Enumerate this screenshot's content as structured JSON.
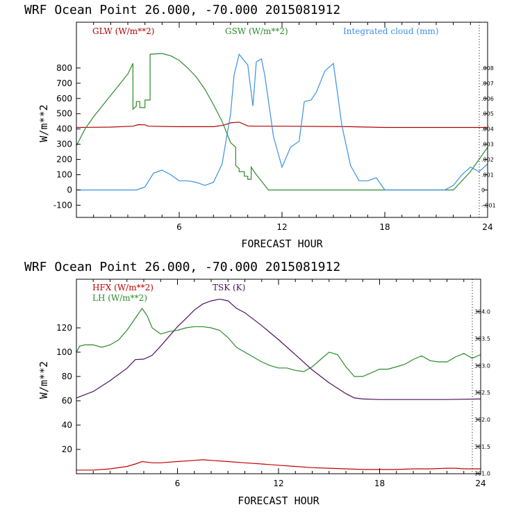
{
  "chart_data": [
    {
      "type": "line",
      "title": "WRF   Ocean Point   26.000, -70.000  2015081912",
      "xlabel": "FORECAST HOUR",
      "ylabel": "W/m**2",
      "xlim": [
        0,
        24
      ],
      "ylim": [
        -180,
        1100
      ],
      "x_ticks": [
        6,
        12,
        18,
        24
      ],
      "y_ticks": [
        -100,
        0,
        100,
        200,
        300,
        400,
        500,
        600,
        700,
        800
      ],
      "right_axis": {
        "lim": [
          -0.0018,
          0.011
        ],
        "ticks": [
          -0.001,
          0,
          0.001,
          0.002,
          0.003,
          0.004,
          0.005,
          0.006,
          0.007,
          0.008
        ],
        "tick_labels": [
          "-.001",
          "0",
          ".001",
          ".002",
          ".003",
          ".004",
          ".005",
          ".006",
          ".007",
          ".008"
        ]
      },
      "series": [
        {
          "name": "GLW (W/m**2)",
          "color": "#b00000",
          "axis": "left",
          "x": [
            0,
            2,
            3.3,
            3.6,
            4,
            4.2,
            6,
            8,
            8.6,
            9,
            9.5,
            10,
            10.5,
            12,
            16,
            18,
            24
          ],
          "y": [
            410,
            412,
            418,
            428,
            427,
            418,
            415,
            415,
            425,
            440,
            445,
            420,
            418,
            418,
            415,
            410,
            410
          ]
        },
        {
          "name": "GSW (W/m**2)",
          "color": "#2a8a2a",
          "axis": "left",
          "x": [
            0,
            0.5,
            1,
            1.5,
            2,
            2.5,
            3,
            3.3,
            3.3,
            3.5,
            3.5,
            3.7,
            3.7,
            4,
            4,
            4.3,
            4.3,
            5,
            5.5,
            6,
            6.5,
            7,
            7.5,
            8,
            8.5,
            9,
            9.3,
            9.3,
            9.5,
            9.5,
            9.8,
            9.8,
            10,
            10,
            10.2,
            10.2,
            10.5,
            11,
            11.2,
            21.5,
            22,
            23,
            24
          ],
          "y": [
            290,
            400,
            480,
            550,
            620,
            690,
            760,
            830,
            530,
            550,
            580,
            580,
            540,
            540,
            590,
            590,
            890,
            895,
            880,
            850,
            800,
            740,
            660,
            560,
            450,
            310,
            280,
            160,
            140,
            120,
            120,
            90,
            90,
            70,
            70,
            150,
            100,
            30,
            0,
            0,
            0,
            120,
            280
          ]
        },
        {
          "name": "Integrated cloud (mm)",
          "color": "#3a8fe0",
          "axis": "right",
          "x": [
            0,
            3.5,
            4,
            4.5,
            5,
            5.5,
            6,
            6.5,
            7,
            7.5,
            8,
            8.5,
            9,
            9.2,
            9.5,
            10,
            10.3,
            10.5,
            10.8,
            11,
            11.5,
            12,
            12.5,
            13,
            13.3,
            13.7,
            14,
            14.5,
            15,
            15.5,
            16,
            16.5,
            17,
            17.5,
            18,
            21.5,
            22,
            22.5,
            23,
            23.5,
            24
          ],
          "y": [
            0,
            0,
            0.0002,
            0.0011,
            0.0013,
            0.001,
            0.0006,
            0.0006,
            0.0005,
            0.0003,
            0.0005,
            0.0017,
            0.005,
            0.0075,
            0.0089,
            0.0082,
            0.0055,
            0.0084,
            0.0086,
            0.0075,
            0.0035,
            0.0015,
            0.0028,
            0.0032,
            0.0058,
            0.0059,
            0.0064,
            0.0078,
            0.0083,
            0.0042,
            0.0016,
            0.0006,
            0.0006,
            0.0008,
            0,
            0,
            0.0003,
            0.001,
            0.0015,
            0.0012,
            0.0017
          ]
        }
      ]
    },
    {
      "type": "line",
      "title": "WRF   Ocean Point   26.000, -70.000  2015081912",
      "xlabel": "FORECAST HOUR",
      "ylabel": "W/m**2",
      "xlim": [
        0,
        24
      ],
      "ylim": [
        0,
        160
      ],
      "x_ticks": [
        6,
        12,
        18,
        24
      ],
      "y_ticks": [
        20,
        40,
        60,
        80,
        100,
        120
      ],
      "right_axis": {
        "lim": [
          300.995,
          304.6
        ],
        "ticks": [
          301.0,
          301.5,
          302.0,
          302.5,
          303.0,
          303.5,
          304.0
        ],
        "tick_labels": [
          "301.0",
          "301.5",
          "302.0",
          "302.5",
          "303.0",
          "303.5",
          "304.0"
        ]
      },
      "series": [
        {
          "name": "HFX (W/m**2)",
          "color": "#c00000",
          "axis": "left",
          "x": [
            0,
            1,
            2,
            3,
            3.5,
            3.9,
            4.5,
            5,
            6,
            7,
            7.5,
            8,
            9,
            10,
            11,
            12,
            13,
            14,
            15,
            16,
            17,
            18,
            19,
            20,
            21,
            22,
            22.5,
            23,
            24
          ],
          "y": [
            3,
            3,
            4,
            6,
            8,
            10,
            9,
            9,
            10,
            11,
            11.5,
            11,
            10,
            9,
            8,
            7,
            6,
            5,
            4.5,
            4,
            3.5,
            3.5,
            3.5,
            4,
            4,
            4.5,
            4.5,
            4,
            4
          ]
        },
        {
          "name": "LH  (W/m**2)",
          "color": "#2a8a2a",
          "axis": "left",
          "x": [
            0,
            0.2,
            0.5,
            1,
            1.5,
            2,
            2.5,
            3,
            3.5,
            3.9,
            4.2,
            4.5,
            5,
            5.5,
            6,
            6.5,
            7,
            7.5,
            8,
            8.5,
            9,
            9.5,
            10,
            10.5,
            11,
            11.5,
            12,
            12.5,
            13,
            13.5,
            14,
            14.5,
            15,
            15.5,
            16,
            16.5,
            17,
            17.5,
            18,
            18.5,
            19,
            19.5,
            20,
            20.5,
            21,
            21.5,
            22,
            22.5,
            23,
            23.5,
            24
          ],
          "y": [
            100,
            105,
            106,
            106,
            104,
            106,
            110,
            118,
            128,
            136,
            130,
            120,
            115,
            117,
            118,
            120,
            121,
            121,
            120,
            118,
            112,
            104,
            100,
            96,
            92,
            89,
            87,
            87,
            85,
            84,
            88,
            94,
            100,
            98,
            88,
            80,
            80,
            83,
            86,
            86,
            88,
            90,
            94,
            97,
            93,
            92,
            92,
            96,
            99,
            95,
            98
          ]
        },
        {
          "name": "TSK (K)",
          "color": "#4a1060",
          "axis": "right",
          "x": [
            0,
            1,
            2,
            3,
            3.5,
            4,
            4.5,
            5,
            5.5,
            6,
            6.5,
            7,
            7.5,
            8,
            8.5,
            9,
            9.5,
            10,
            11,
            12,
            13,
            14,
            15,
            16,
            16.5,
            17,
            18,
            20,
            22,
            24
          ],
          "y": [
            302.4,
            302.52,
            302.72,
            302.95,
            303.11,
            303.12,
            303.19,
            303.36,
            303.54,
            303.72,
            303.87,
            304.03,
            304.14,
            304.2,
            304.23,
            304.2,
            304.06,
            303.98,
            303.74,
            303.48,
            303.2,
            302.92,
            302.68,
            302.48,
            302.4,
            302.38,
            302.37,
            302.37,
            302.37,
            302.38
          ]
        }
      ]
    }
  ]
}
